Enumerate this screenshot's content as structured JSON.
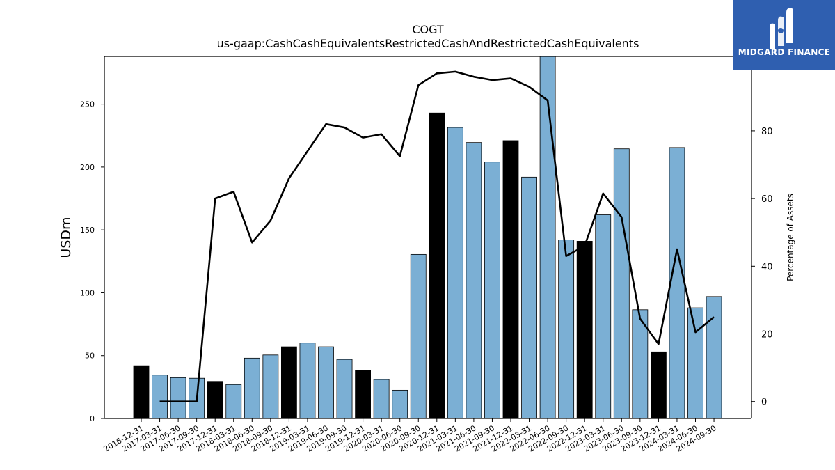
{
  "title": "COGT",
  "subtitle": "us-gaap:CashCashEquivalentsRestrictedCashAndRestrictedCashEquivalents",
  "logo": {
    "text": "MIDGARD FINANCE",
    "icon": "midgard-logo-icon",
    "color": "#2f5fb0"
  },
  "chart_data": {
    "type": "bar",
    "ylabel": "USDm",
    "y2label": "Percentage of Assets",
    "ylim": [
      0,
      288
    ],
    "y2lim": [
      -5,
      102
    ],
    "yticks": [
      0,
      50,
      100,
      150,
      200,
      250
    ],
    "y2ticks": [
      0,
      20,
      40,
      60,
      80
    ],
    "grid": false,
    "colors": {
      "bar": "#7bafd4",
      "bar_highlight": "#000000",
      "line": "#000000"
    },
    "categories": [
      "2016-12-31",
      "2017-03-31",
      "2017-06-30",
      "2017-09-30",
      "2017-12-31",
      "2018-03-31",
      "2018-06-30",
      "2018-09-30",
      "2018-12-31",
      "2019-03-31",
      "2019-06-30",
      "2019-09-30",
      "2019-12-31",
      "2020-03-31",
      "2020-06-30",
      "2020-09-30",
      "2020-12-31",
      "2021-03-31",
      "2021-06-30",
      "2021-09-30",
      "2021-12-31",
      "2022-03-31",
      "2022-06-30",
      "2022-09-30",
      "2022-12-31",
      "2023-03-31",
      "2023-06-30",
      "2023-09-30",
      "2023-12-31",
      "2024-03-31",
      "2024-06-30",
      "2024-09-30"
    ],
    "series": [
      {
        "type": "bar",
        "values": [
          42,
          34.5,
          32.5,
          32,
          29.5,
          27,
          48,
          50.5,
          57,
          60,
          57,
          47,
          38.5,
          31,
          22.5,
          130.5,
          243,
          231.5,
          219.5,
          204,
          221,
          192,
          288,
          142,
          141,
          162,
          214.5,
          86.5,
          53,
          215.5,
          88,
          97
        ],
        "highlight": [
          true,
          false,
          false,
          false,
          true,
          false,
          false,
          false,
          true,
          false,
          false,
          false,
          true,
          false,
          false,
          false,
          true,
          false,
          false,
          false,
          true,
          false,
          false,
          false,
          true,
          false,
          false,
          false,
          true,
          false,
          false,
          false
        ]
      },
      {
        "type": "line",
        "axis": "right",
        "values": [
          null,
          0,
          0,
          0,
          60,
          62,
          47,
          53.5,
          66,
          74,
          82,
          81,
          78,
          79,
          72.5,
          93.5,
          97,
          97.5,
          96,
          95,
          95.5,
          93,
          89,
          43,
          46,
          61.5,
          54.5,
          24.5,
          17,
          45,
          20.5,
          25
        ]
      }
    ]
  }
}
